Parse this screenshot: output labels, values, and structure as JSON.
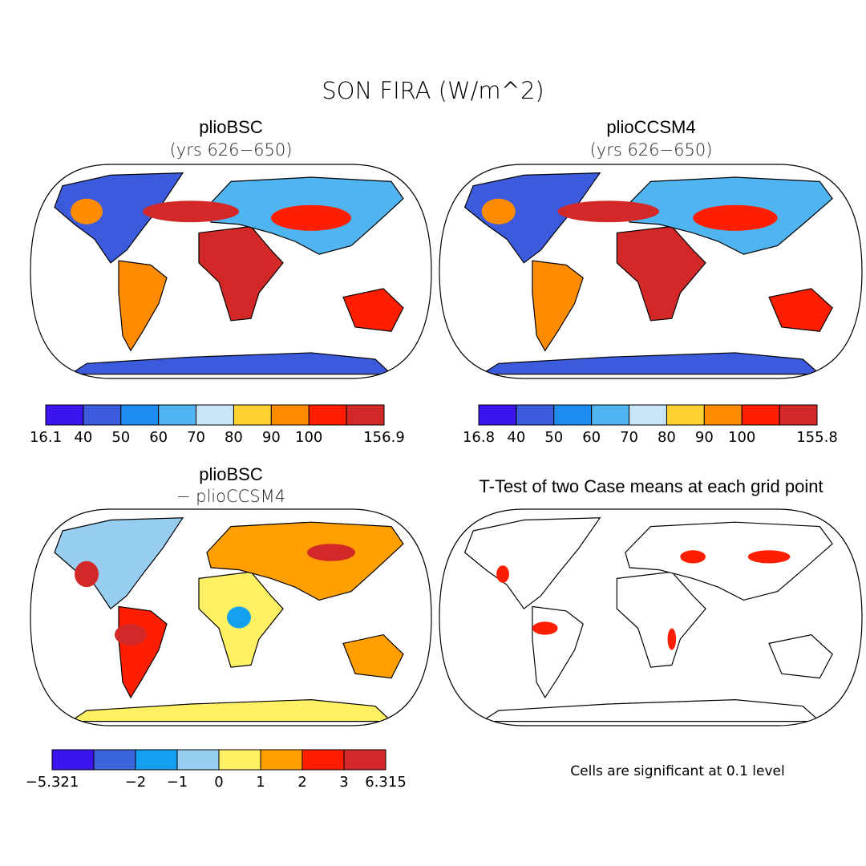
{
  "title": "SON FIRA (W/m^2)",
  "panels": [
    {
      "title": "plioBSC",
      "subtitle": "(yrs 626−650)",
      "colorbar": {
        "colors": [
          "#3c14f0",
          "#3c5adc",
          "#1e8cf0",
          "#50b4f0",
          "#c8e6f8",
          "#ffd232",
          "#ff8c00",
          "#ff1e00",
          "#d22828"
        ],
        "labels": [
          "16.1",
          "40",
          "50",
          "60",
          "70",
          "80",
          "90",
          "100",
          null,
          "156.9"
        ]
      }
    },
    {
      "title": "plioCCSM4",
      "subtitle": "(yrs 626−650)",
      "colorbar": {
        "colors": [
          "#3c14f0",
          "#3c5adc",
          "#1e8cf0",
          "#50b4f0",
          "#c8e6f8",
          "#ffd232",
          "#ff8c00",
          "#ff1e00",
          "#d22828"
        ],
        "labels": [
          "16.8",
          "40",
          "50",
          "60",
          "70",
          "80",
          "90",
          "100",
          null,
          "155.8"
        ]
      }
    },
    {
      "title": "plioBSC",
      "subtitle": "− plioCCSM4",
      "colorbar": {
        "colors": [
          "#3c14f0",
          "#3c64dc",
          "#14a0f0",
          "#96cdf0",
          "#fff064",
          "#ffa000",
          "#ff1e00",
          "#d22828"
        ],
        "labels": [
          "−5.321",
          null,
          "−2",
          "−1",
          "0",
          "1",
          "2",
          "3",
          "6.315"
        ]
      }
    },
    {
      "title": "T-Test of two Case means at each grid point",
      "note": "Cells are significant at 0.1 level"
    }
  ]
}
